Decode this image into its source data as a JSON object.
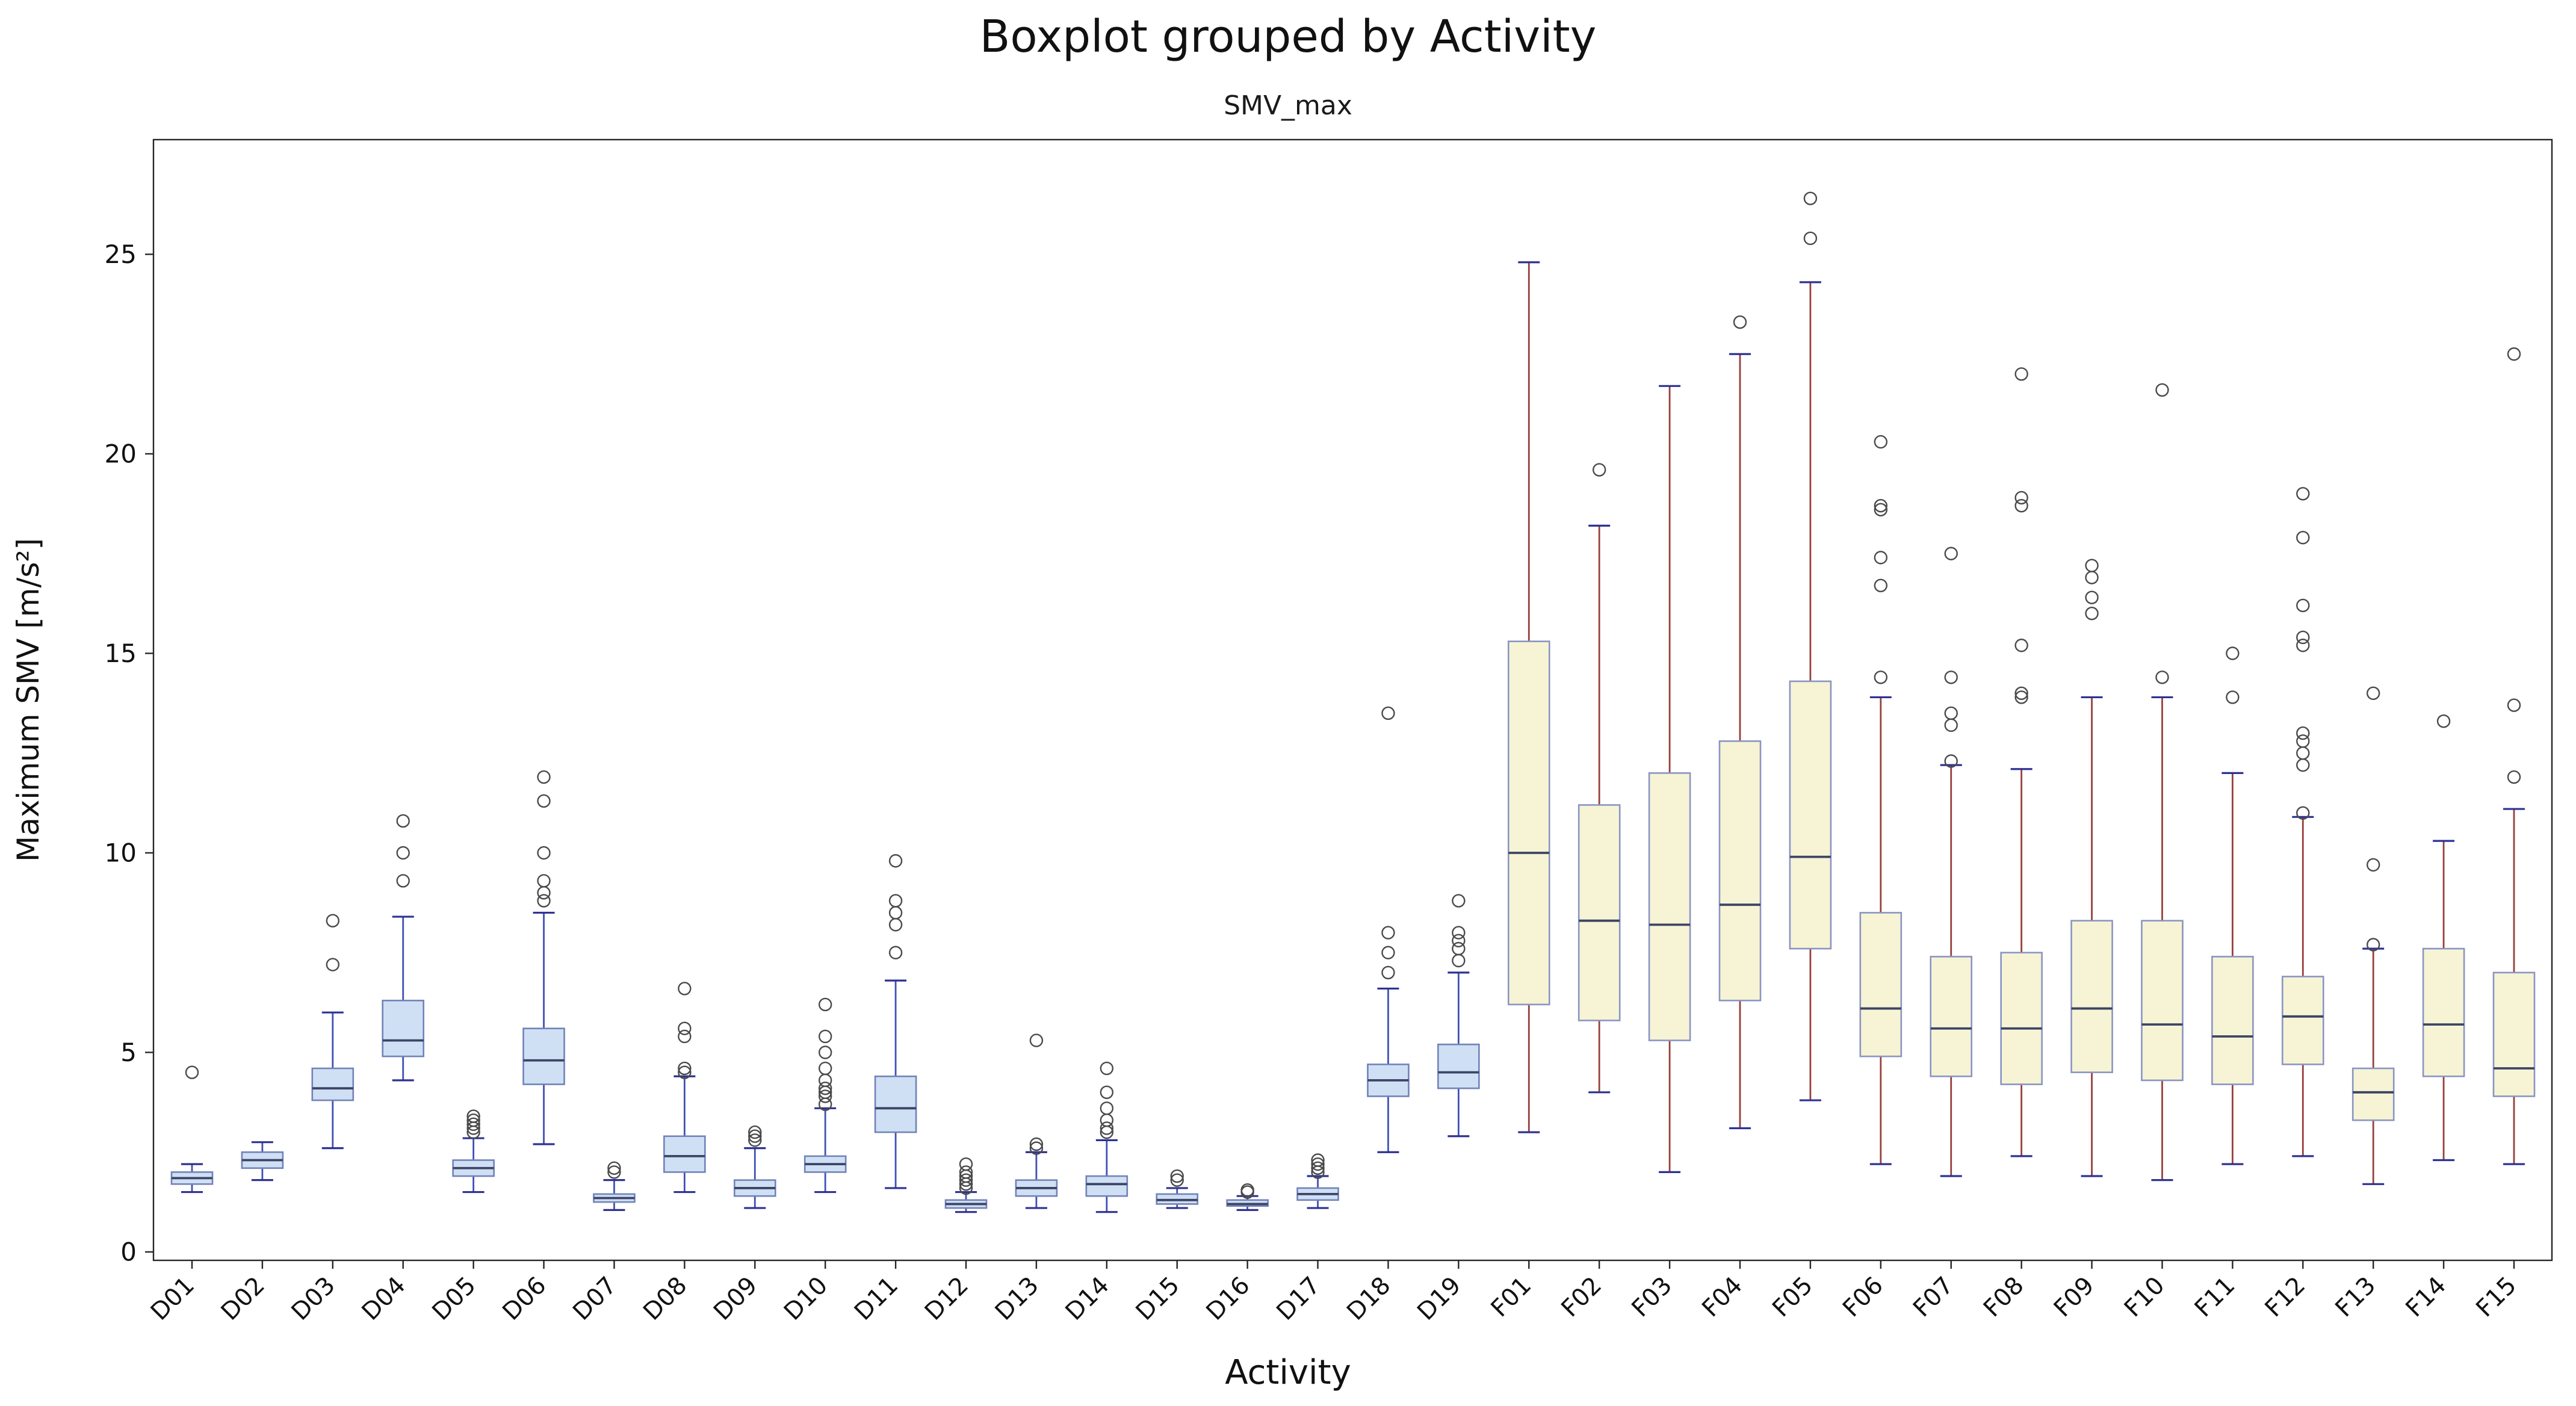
{
  "chart": {
    "title": "Boxplot grouped by Activity",
    "subtitle": "SMV_max",
    "xlabel": "Activity",
    "ylabel": "Maximum SMV [m/s²]"
  },
  "chart_data": {
    "type": "boxplot",
    "title": "Boxplot grouped by Activity",
    "subtitle": "SMV_max",
    "xlabel": "Activity",
    "ylabel": "Maximum SMV [m/s²]",
    "ylim": [
      0,
      28
    ],
    "yticks": [
      0,
      5,
      10,
      15,
      20,
      25
    ],
    "grid": false,
    "legend": false,
    "categories": [
      "D01",
      "D02",
      "D03",
      "D04",
      "D05",
      "D06",
      "D07",
      "D08",
      "D09",
      "D10",
      "D11",
      "D12",
      "D13",
      "D14",
      "D15",
      "D16",
      "D17",
      "D18",
      "D19",
      "F01",
      "F02",
      "F03",
      "F04",
      "F05",
      "F06",
      "F07",
      "F08",
      "F09",
      "F10",
      "F11",
      "F12",
      "F13",
      "F14",
      "F15"
    ],
    "groups": {
      "D": {
        "box_fill": "#cfe0f5",
        "box_edge": "#7282b8",
        "median": "#3d4466",
        "whisker": "#3f51b5",
        "cap": "#2e3192"
      },
      "F": {
        "box_fill": "#f6f4d4",
        "box_edge": "#8a94c4",
        "median": "#3d4466",
        "whisker": "#96403a",
        "cap": "#2e3192"
      }
    },
    "outlier_color": "#4a4a4a",
    "boxes": [
      {
        "label": "D01",
        "group": "D",
        "whislo": 1.5,
        "q1": 1.7,
        "med": 1.85,
        "q3": 2.0,
        "whishi": 2.2,
        "fliers": [
          4.5
        ]
      },
      {
        "label": "D02",
        "group": "D",
        "whislo": 1.8,
        "q1": 2.1,
        "med": 2.3,
        "q3": 2.5,
        "whishi": 2.75,
        "fliers": []
      },
      {
        "label": "D03",
        "group": "D",
        "whislo": 2.6,
        "q1": 3.8,
        "med": 4.1,
        "q3": 4.6,
        "whishi": 6.0,
        "fliers": [
          7.2,
          8.3
        ]
      },
      {
        "label": "D04",
        "group": "D",
        "whislo": 4.3,
        "q1": 4.9,
        "med": 5.3,
        "q3": 6.3,
        "whishi": 8.4,
        "fliers": [
          9.3,
          10.0,
          10.8
        ]
      },
      {
        "label": "D05",
        "group": "D",
        "whislo": 1.5,
        "q1": 1.9,
        "med": 2.1,
        "q3": 2.3,
        "whishi": 2.85,
        "fliers": [
          3.0,
          3.1,
          3.2,
          3.3,
          3.4
        ]
      },
      {
        "label": "D06",
        "group": "D",
        "whislo": 2.7,
        "q1": 4.2,
        "med": 4.8,
        "q3": 5.6,
        "whishi": 8.5,
        "fliers": [
          8.8,
          9.0,
          9.3,
          10.0,
          11.3,
          11.9
        ]
      },
      {
        "label": "D07",
        "group": "D",
        "whislo": 1.05,
        "q1": 1.25,
        "med": 1.35,
        "q3": 1.45,
        "whishi": 1.8,
        "fliers": [
          2.0,
          2.1
        ]
      },
      {
        "label": "D08",
        "group": "D",
        "whislo": 1.5,
        "q1": 2.0,
        "med": 2.4,
        "q3": 2.9,
        "whishi": 4.4,
        "fliers": [
          4.5,
          4.6,
          5.4,
          5.6,
          6.6
        ]
      },
      {
        "label": "D09",
        "group": "D",
        "whislo": 1.1,
        "q1": 1.4,
        "med": 1.6,
        "q3": 1.8,
        "whishi": 2.6,
        "fliers": [
          2.8,
          2.9,
          3.0
        ]
      },
      {
        "label": "D10",
        "group": "D",
        "whislo": 1.5,
        "q1": 2.0,
        "med": 2.2,
        "q3": 2.4,
        "whishi": 3.6,
        "fliers": [
          3.7,
          3.9,
          4.0,
          4.1,
          4.3,
          4.6,
          5.0,
          5.4,
          6.2
        ]
      },
      {
        "label": "D11",
        "group": "D",
        "whislo": 1.6,
        "q1": 3.0,
        "med": 3.6,
        "q3": 4.4,
        "whishi": 6.8,
        "fliers": [
          7.5,
          8.2,
          8.5,
          8.8,
          9.8
        ]
      },
      {
        "label": "D12",
        "group": "D",
        "whislo": 1.0,
        "q1": 1.1,
        "med": 1.2,
        "q3": 1.3,
        "whishi": 1.5,
        "fliers": [
          1.6,
          1.7,
          1.8,
          1.9,
          2.0,
          2.2
        ]
      },
      {
        "label": "D13",
        "group": "D",
        "whislo": 1.1,
        "q1": 1.4,
        "med": 1.6,
        "q3": 1.8,
        "whishi": 2.5,
        "fliers": [
          2.6,
          2.7,
          5.3
        ]
      },
      {
        "label": "D14",
        "group": "D",
        "whislo": 1.0,
        "q1": 1.4,
        "med": 1.7,
        "q3": 1.9,
        "whishi": 2.8,
        "fliers": [
          3.0,
          3.1,
          3.3,
          3.6,
          4.0,
          4.6
        ]
      },
      {
        "label": "D15",
        "group": "D",
        "whislo": 1.1,
        "q1": 1.2,
        "med": 1.3,
        "q3": 1.45,
        "whishi": 1.6,
        "fliers": [
          1.8,
          1.9
        ]
      },
      {
        "label": "D16",
        "group": "D",
        "whislo": 1.05,
        "q1": 1.15,
        "med": 1.2,
        "q3": 1.3,
        "whishi": 1.4,
        "fliers": [
          1.5,
          1.55
        ]
      },
      {
        "label": "D17",
        "group": "D",
        "whislo": 1.1,
        "q1": 1.3,
        "med": 1.45,
        "q3": 1.6,
        "whishi": 1.9,
        "fliers": [
          2.0,
          2.1,
          2.2,
          2.3
        ]
      },
      {
        "label": "D18",
        "group": "D",
        "whislo": 2.5,
        "q1": 3.9,
        "med": 4.3,
        "q3": 4.7,
        "whishi": 6.6,
        "fliers": [
          7.0,
          7.5,
          8.0,
          13.5
        ]
      },
      {
        "label": "D19",
        "group": "D",
        "whislo": 2.9,
        "q1": 4.1,
        "med": 4.5,
        "q3": 5.2,
        "whishi": 7.0,
        "fliers": [
          7.3,
          7.6,
          7.8,
          8.0,
          8.8
        ]
      },
      {
        "label": "F01",
        "group": "F",
        "whislo": 3.0,
        "q1": 6.2,
        "med": 10.0,
        "q3": 15.3,
        "whishi": 24.8,
        "fliers": []
      },
      {
        "label": "F02",
        "group": "F",
        "whislo": 4.0,
        "q1": 5.8,
        "med": 8.3,
        "q3": 11.2,
        "whishi": 18.2,
        "fliers": [
          19.6
        ]
      },
      {
        "label": "F03",
        "group": "F",
        "whislo": 2.0,
        "q1": 5.3,
        "med": 8.2,
        "q3": 12.0,
        "whishi": 21.7,
        "fliers": []
      },
      {
        "label": "F04",
        "group": "F",
        "whislo": 3.1,
        "q1": 6.3,
        "med": 8.7,
        "q3": 12.8,
        "whishi": 22.5,
        "fliers": [
          23.3
        ]
      },
      {
        "label": "F05",
        "group": "F",
        "whislo": 3.8,
        "q1": 7.6,
        "med": 9.9,
        "q3": 14.3,
        "whishi": 24.3,
        "fliers": [
          25.4,
          26.4
        ]
      },
      {
        "label": "F06",
        "group": "F",
        "whislo": 2.2,
        "q1": 4.9,
        "med": 6.1,
        "q3": 8.5,
        "whishi": 13.9,
        "fliers": [
          14.4,
          16.7,
          17.4,
          18.6,
          18.7,
          20.3
        ]
      },
      {
        "label": "F07",
        "group": "F",
        "whislo": 1.9,
        "q1": 4.4,
        "med": 5.6,
        "q3": 7.4,
        "whishi": 12.2,
        "fliers": [
          12.3,
          13.2,
          13.5,
          14.4,
          17.5
        ]
      },
      {
        "label": "F08",
        "group": "F",
        "whislo": 2.4,
        "q1": 4.2,
        "med": 5.6,
        "q3": 7.5,
        "whishi": 12.1,
        "fliers": [
          13.9,
          14.0,
          15.2,
          18.7,
          18.9,
          22.0
        ]
      },
      {
        "label": "F09",
        "group": "F",
        "whislo": 1.9,
        "q1": 4.5,
        "med": 6.1,
        "q3": 8.3,
        "whishi": 13.9,
        "fliers": [
          16.0,
          16.4,
          16.9,
          17.2
        ]
      },
      {
        "label": "F10",
        "group": "F",
        "whislo": 1.8,
        "q1": 4.3,
        "med": 5.7,
        "q3": 8.3,
        "whishi": 13.9,
        "fliers": [
          14.4,
          21.6
        ]
      },
      {
        "label": "F11",
        "group": "F",
        "whislo": 2.2,
        "q1": 4.2,
        "med": 5.4,
        "q3": 7.4,
        "whishi": 12.0,
        "fliers": [
          13.9,
          15.0
        ]
      },
      {
        "label": "F12",
        "group": "F",
        "whislo": 2.4,
        "q1": 4.7,
        "med": 5.9,
        "q3": 6.9,
        "whishi": 10.9,
        "fliers": [
          11.0,
          12.2,
          12.5,
          12.8,
          13.0,
          15.2,
          15.4,
          16.2,
          17.9,
          19.0
        ]
      },
      {
        "label": "F13",
        "group": "F",
        "whislo": 1.7,
        "q1": 3.3,
        "med": 4.0,
        "q3": 4.6,
        "whishi": 7.6,
        "fliers": [
          7.7,
          9.7,
          14.0
        ]
      },
      {
        "label": "F14",
        "group": "F",
        "whislo": 2.3,
        "q1": 4.4,
        "med": 5.7,
        "q3": 7.6,
        "whishi": 10.3,
        "fliers": [
          13.3
        ]
      },
      {
        "label": "F15",
        "group": "F",
        "whislo": 2.2,
        "q1": 3.9,
        "med": 4.6,
        "q3": 7.0,
        "whishi": 11.1,
        "fliers": [
          11.9,
          13.7,
          22.5
        ]
      }
    ]
  }
}
